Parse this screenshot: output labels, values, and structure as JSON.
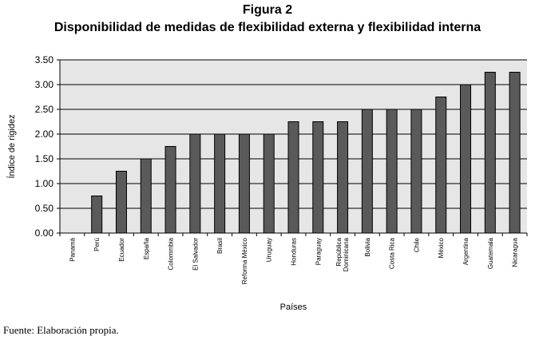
{
  "figure_title": "Figura 2",
  "figure_subtitle": "Disponibilidad de medidas de flexibilidad externa y flexibilidad interna",
  "source_note": "Fuente: Elaboración propia.",
  "colors": {
    "bar": "#5a5a5a",
    "plot_bg": "#e6e6e6",
    "grid": "#000000"
  },
  "chart_data": {
    "type": "bar",
    "title": "",
    "xlabel": "Países",
    "ylabel": "Índice de rigidez",
    "ylim": [
      0,
      3.5
    ],
    "yticks": [
      "0.00",
      "0.50",
      "1.00",
      "1.50",
      "2.00",
      "2.50",
      "3.00",
      "3.50"
    ],
    "grid": true,
    "categories": [
      "Panamá",
      "Perú",
      "Ecuador",
      "España",
      "Colommbia",
      "El Salvador",
      "Brasil",
      "Reforma México",
      "Uruguay",
      "Honduras",
      "Paraguay",
      "República Dominicana",
      "Bolivia",
      "Costa Rica",
      "Chile",
      "México",
      "Argentina",
      "Guatemala",
      "Nicaragua"
    ],
    "values": [
      0,
      0.75,
      1.25,
      1.5,
      1.75,
      2.0,
      2.0,
      2.0,
      2.0,
      2.25,
      2.25,
      2.25,
      2.5,
      2.5,
      2.5,
      2.75,
      3.0,
      3.25,
      3.25
    ]
  }
}
